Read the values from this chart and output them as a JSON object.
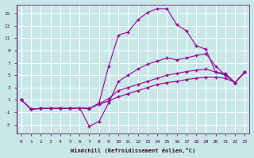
{
  "xlabel": "Windchill (Refroidissement éolien,°C)",
  "xlim": [
    -0.5,
    23.5
  ],
  "ylim": [
    -4.5,
    16.5
  ],
  "xticks": [
    0,
    1,
    2,
    3,
    4,
    5,
    6,
    7,
    8,
    9,
    10,
    11,
    12,
    13,
    14,
    15,
    16,
    17,
    18,
    19,
    20,
    21,
    22,
    23
  ],
  "yticks": [
    -3,
    -1,
    1,
    3,
    5,
    7,
    9,
    11,
    13,
    15
  ],
  "line_color": "#990099",
  "bg_color": "#c8e8e8",
  "grid_color": "#b0d0d0",
  "lines": [
    {
      "x": [
        0,
        1,
        2,
        3,
        4,
        5,
        6,
        7,
        8,
        9,
        10,
        11,
        12,
        13,
        14,
        15,
        16,
        17,
        18,
        19,
        20,
        21,
        22,
        23
      ],
      "y": [
        1.0,
        -0.5,
        -0.4,
        -0.4,
        -0.4,
        -0.4,
        -0.3,
        -0.5,
        0.5,
        6.5,
        11.5,
        12.0,
        14.0,
        15.2,
        15.8,
        15.8,
        13.2,
        12.2,
        9.8,
        9.2,
        5.5,
        5.3,
        3.8,
        5.5
      ]
    },
    {
      "x": [
        0,
        1,
        2,
        3,
        4,
        5,
        6,
        7,
        8,
        9,
        10,
        11,
        12,
        13,
        14,
        15,
        16,
        17,
        18,
        19,
        20,
        21,
        22,
        23
      ],
      "y": [
        1.0,
        -0.5,
        -0.4,
        -0.4,
        -0.4,
        -0.4,
        -0.3,
        -3.3,
        -2.5,
        0.5,
        4.0,
        5.0,
        6.0,
        6.8,
        7.3,
        7.8,
        7.5,
        7.8,
        8.2,
        8.5,
        6.5,
        5.0,
        3.8,
        5.5
      ]
    },
    {
      "x": [
        0,
        1,
        2,
        3,
        4,
        5,
        6,
        7,
        8,
        9,
        10,
        11,
        12,
        13,
        14,
        15,
        16,
        17,
        18,
        19,
        20,
        21,
        22,
        23
      ],
      "y": [
        1.0,
        -0.5,
        -0.4,
        -0.4,
        -0.4,
        -0.4,
        -0.3,
        -0.4,
        0.3,
        1.2,
        2.5,
        3.0,
        3.5,
        4.0,
        4.5,
        5.0,
        5.3,
        5.6,
        5.8,
        6.0,
        5.5,
        5.0,
        3.8,
        5.5
      ]
    },
    {
      "x": [
        0,
        1,
        2,
        3,
        4,
        5,
        6,
        7,
        8,
        9,
        10,
        11,
        12,
        13,
        14,
        15,
        16,
        17,
        18,
        19,
        20,
        21,
        22,
        23
      ],
      "y": [
        1.0,
        -0.5,
        -0.4,
        -0.4,
        -0.4,
        -0.4,
        -0.3,
        -0.4,
        0.3,
        0.8,
        1.5,
        2.0,
        2.5,
        3.0,
        3.5,
        3.8,
        4.0,
        4.3,
        4.5,
        4.7,
        4.7,
        4.5,
        3.8,
        5.5
      ]
    }
  ]
}
